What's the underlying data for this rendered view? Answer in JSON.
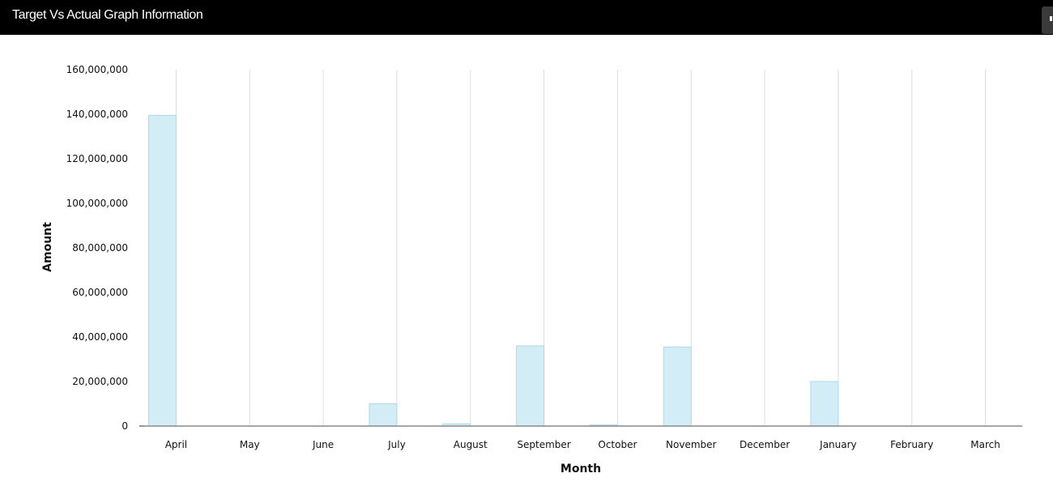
{
  "header": {
    "title": "Target Vs Actual Graph Information"
  },
  "chart_data": {
    "type": "bar",
    "categories": [
      "April",
      "May",
      "June",
      "July",
      "August",
      "September",
      "October",
      "November",
      "December",
      "January",
      "February",
      "March"
    ],
    "values": [
      139500000,
      0,
      0,
      10000000,
      1000000,
      36000000,
      500000,
      35500000,
      0,
      20000000,
      0,
      0
    ],
    "xlabel": "Month",
    "ylabel": "Amount",
    "ylim": [
      0,
      160000000
    ],
    "yticks": [
      0,
      20000000,
      40000000,
      60000000,
      80000000,
      100000000,
      120000000,
      140000000,
      160000000
    ],
    "ytick_labels": [
      "0",
      "20,000,000",
      "40,000,000",
      "60,000,000",
      "80,000,000",
      "100,000,000",
      "120,000,000",
      "140,000,000",
      "160,000,000"
    ],
    "grid": true,
    "legend": false,
    "colors": {
      "bar_fill": "#d2edf5",
      "bar_stroke": "#a9dbeb",
      "grid": "#dddddd",
      "axis": "#888888"
    }
  }
}
